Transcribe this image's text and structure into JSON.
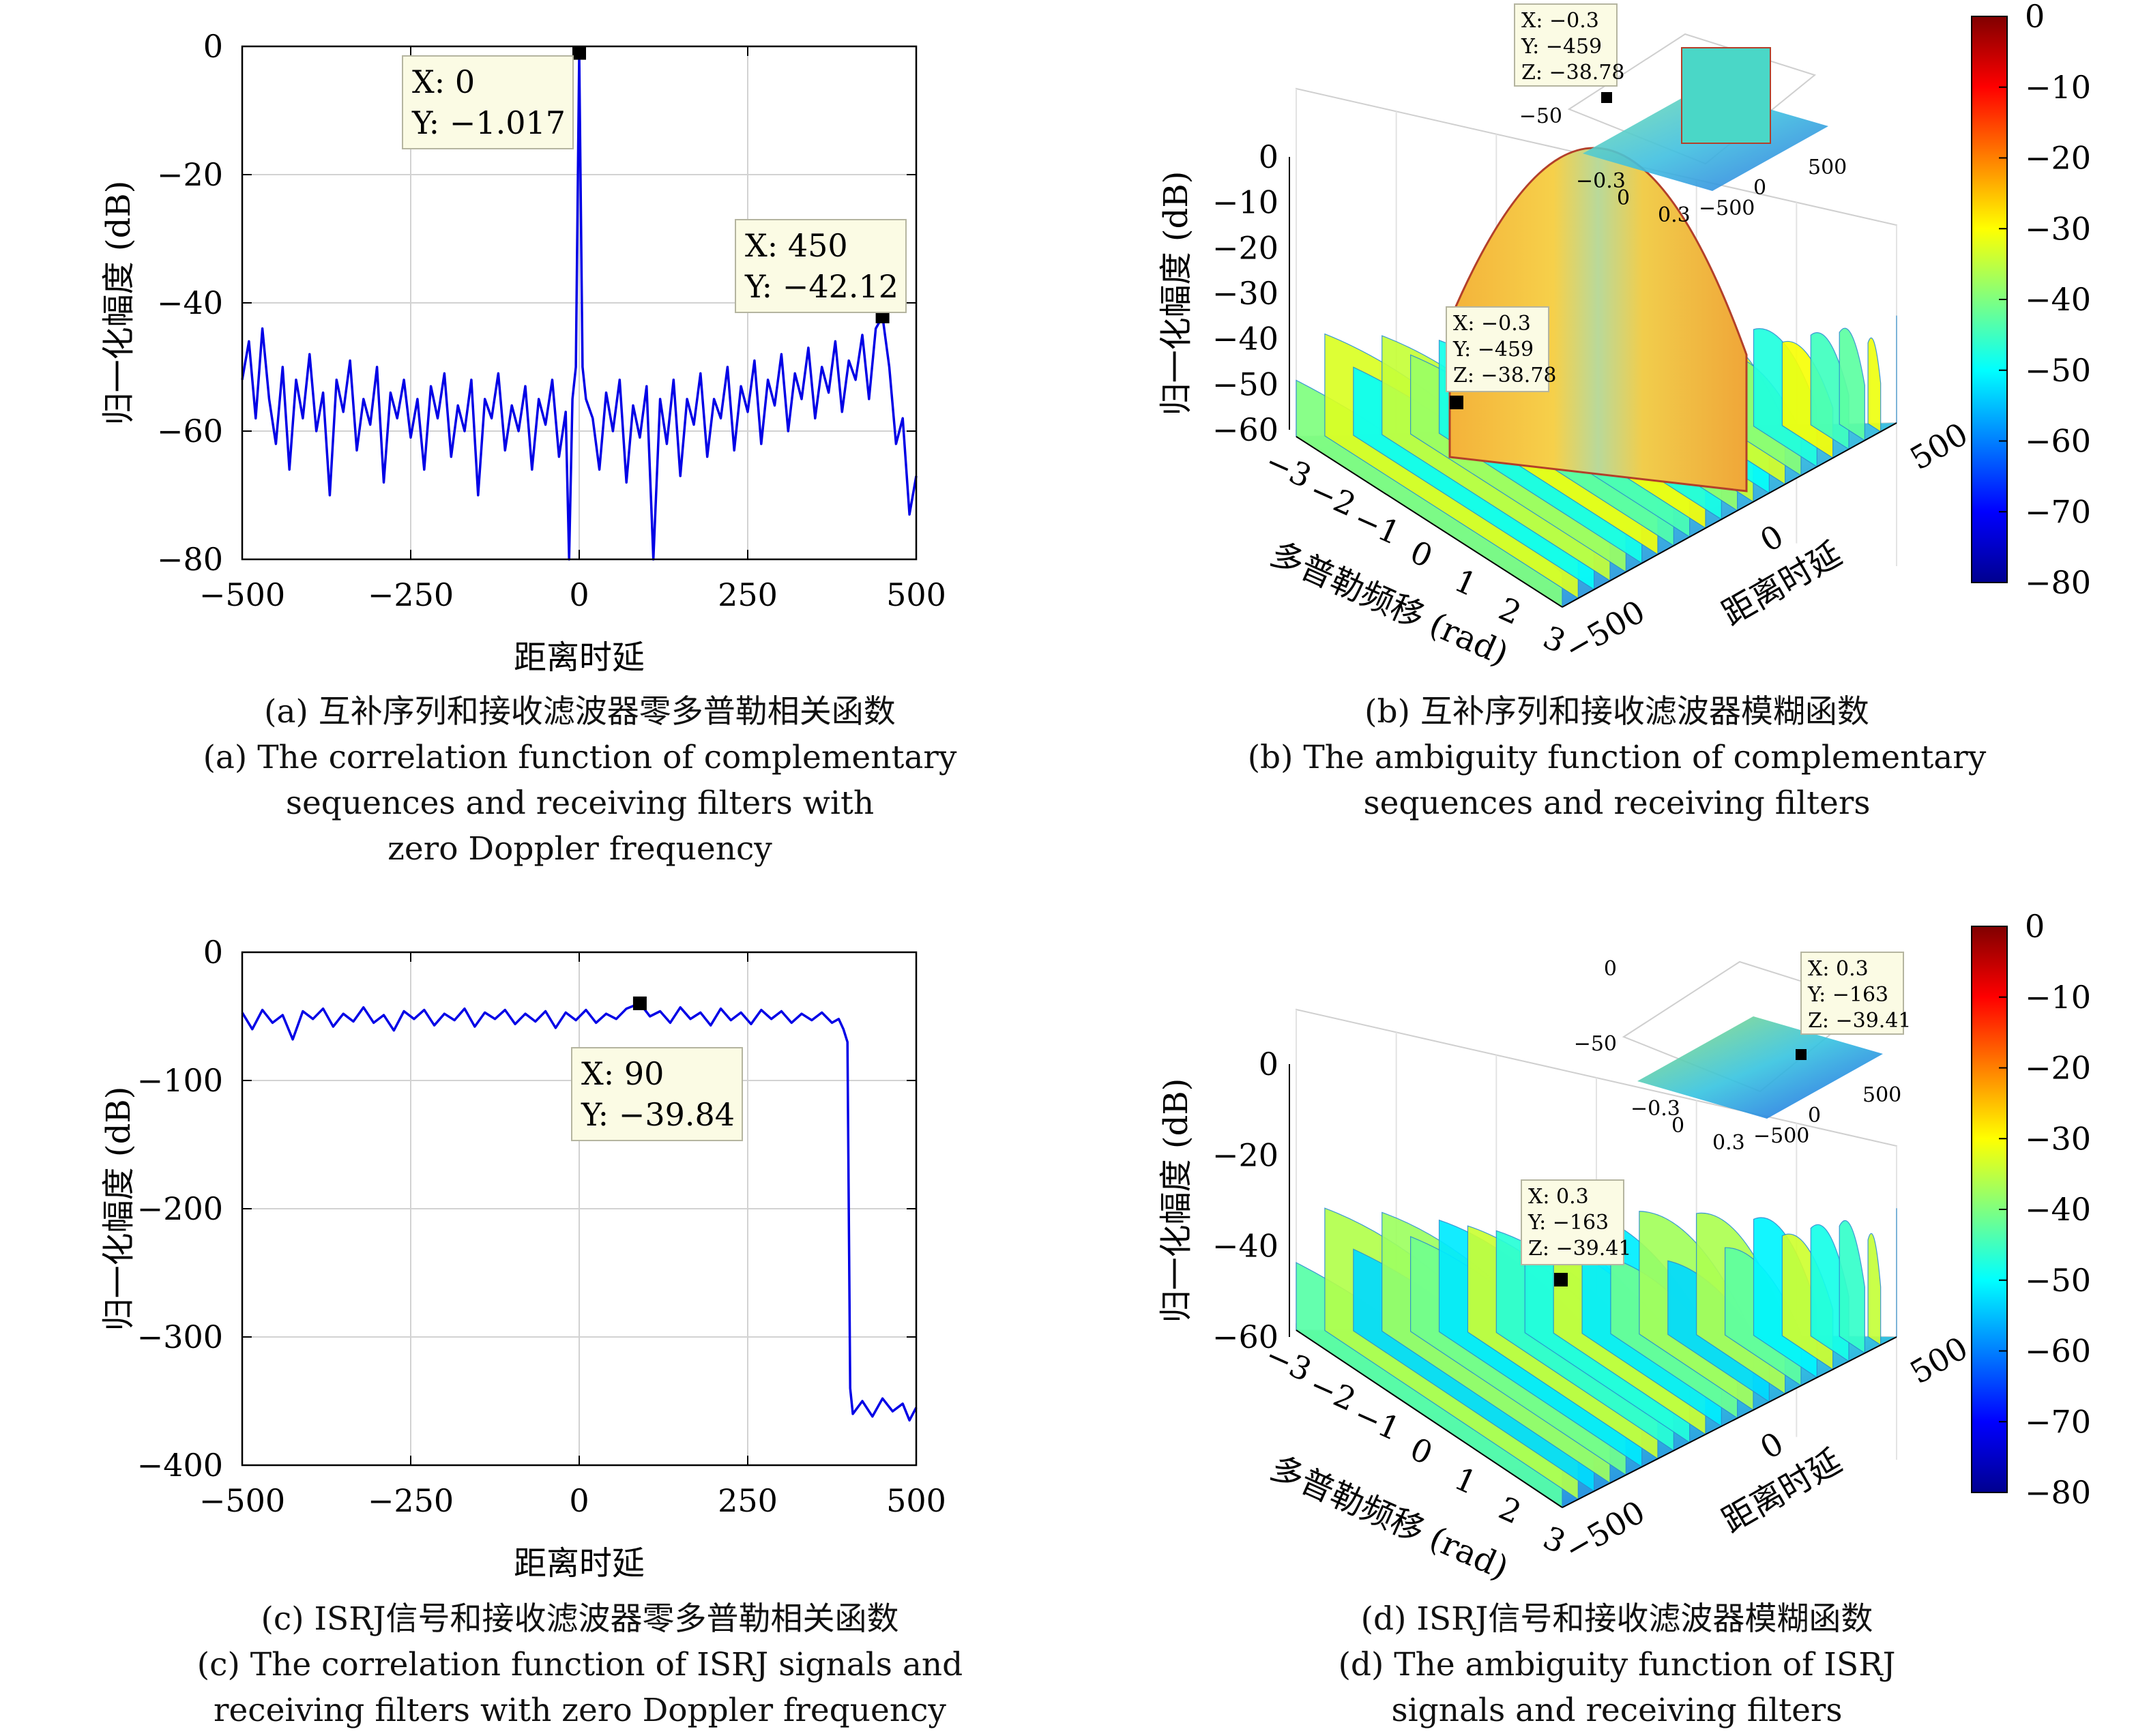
{
  "chart_data": [
    {
      "id": "a",
      "type": "line",
      "ylabel": "归一化幅度 (dB)",
      "xlabel": "距离时延",
      "xlim": [
        -500,
        500
      ],
      "ylim": [
        -80,
        0
      ],
      "xticks": [
        "−500",
        "−250",
        "0",
        "250",
        "500"
      ],
      "yticks": [
        "0",
        "−20",
        "−40",
        "−60",
        "−80"
      ],
      "grid": true,
      "line_color": "#0000e6",
      "series": [
        {
          "points": [
            [
              -500,
              -52
            ],
            [
              -490,
              -46
            ],
            [
              -480,
              -58
            ],
            [
              -470,
              -44
            ],
            [
              -460,
              -55
            ],
            [
              -450,
              -62
            ],
            [
              -440,
              -50
            ],
            [
              -430,
              -66
            ],
            [
              -420,
              -52
            ],
            [
              -410,
              -58
            ],
            [
              -400,
              -48
            ],
            [
              -390,
              -60
            ],
            [
              -380,
              -54
            ],
            [
              -370,
              -70
            ],
            [
              -360,
              -52
            ],
            [
              -350,
              -57
            ],
            [
              -340,
              -49
            ],
            [
              -330,
              -63
            ],
            [
              -320,
              -55
            ],
            [
              -310,
              -59
            ],
            [
              -300,
              -50
            ],
            [
              -290,
              -68
            ],
            [
              -280,
              -54
            ],
            [
              -270,
              -58
            ],
            [
              -260,
              -52
            ],
            [
              -250,
              -61
            ],
            [
              -240,
              -55
            ],
            [
              -230,
              -66
            ],
            [
              -220,
              -53
            ],
            [
              -210,
              -58
            ],
            [
              -200,
              -51
            ],
            [
              -190,
              -64
            ],
            [
              -180,
              -56
            ],
            [
              -170,
              -60
            ],
            [
              -160,
              -52
            ],
            [
              -150,
              -70
            ],
            [
              -140,
              -55
            ],
            [
              -130,
              -58
            ],
            [
              -120,
              -51
            ],
            [
              -110,
              -63
            ],
            [
              -100,
              -56
            ],
            [
              -90,
              -60
            ],
            [
              -80,
              -53
            ],
            [
              -70,
              -66
            ],
            [
              -60,
              -55
            ],
            [
              -50,
              -59
            ],
            [
              -40,
              -52
            ],
            [
              -30,
              -64
            ],
            [
              -20,
              -57
            ],
            [
              -15,
              -80
            ],
            [
              -10,
              -55
            ],
            [
              -5,
              -50
            ],
            [
              0,
              -1.017
            ],
            [
              5,
              -50
            ],
            [
              10,
              -55
            ],
            [
              20,
              -58
            ],
            [
              30,
              -66
            ],
            [
              40,
              -54
            ],
            [
              50,
              -60
            ],
            [
              60,
              -52
            ],
            [
              70,
              -68
            ],
            [
              80,
              -56
            ],
            [
              90,
              -61
            ],
            [
              100,
              -53
            ],
            [
              110,
              -80
            ],
            [
              120,
              -55
            ],
            [
              130,
              -62
            ],
            [
              140,
              -52
            ],
            [
              150,
              -67
            ],
            [
              160,
              -55
            ],
            [
              170,
              -59
            ],
            [
              180,
              -51
            ],
            [
              190,
              -64
            ],
            [
              200,
              -55
            ],
            [
              210,
              -58
            ],
            [
              220,
              -50
            ],
            [
              230,
              -63
            ],
            [
              240,
              -53
            ],
            [
              250,
              -57
            ],
            [
              260,
              -49
            ],
            [
              270,
              -62
            ],
            [
              280,
              -52
            ],
            [
              290,
              -56
            ],
            [
              300,
              -48
            ],
            [
              310,
              -60
            ],
            [
              320,
              -51
            ],
            [
              330,
              -55
            ],
            [
              340,
              -47
            ],
            [
              350,
              -58
            ],
            [
              360,
              -50
            ],
            [
              370,
              -54
            ],
            [
              380,
              -46
            ],
            [
              390,
              -57
            ],
            [
              400,
              -49
            ],
            [
              410,
              -52
            ],
            [
              420,
              -45
            ],
            [
              430,
              -55
            ],
            [
              440,
              -44
            ],
            [
              450,
              -42.12
            ],
            [
              460,
              -50
            ],
            [
              470,
              -62
            ],
            [
              480,
              -58
            ],
            [
              490,
              -73
            ],
            [
              500,
              -67
            ]
          ]
        }
      ],
      "datatips": [
        {
          "x": 0,
          "y": -1.017,
          "lines": [
            "X: 0",
            "Y: −1.017"
          ]
        },
        {
          "x": 450,
          "y": -42.12,
          "lines": [
            "X: 450",
            "Y: −42.12"
          ]
        }
      ],
      "caption": [
        "(a) 互补序列和接收滤波器零多普勒相关函数",
        "(a) The correlation function of complementary",
        "sequences and receiving filters with",
        "zero Doppler frequency"
      ]
    },
    {
      "id": "b",
      "type": "surface3d",
      "zlabel": "归一化幅度 (dB)",
      "xlabel": "多普勒频移 (rad)",
      "ylabel": "距离时延",
      "xticks": [
        "−3",
        "−2",
        "−1",
        "0",
        "1",
        "2",
        "3"
      ],
      "yticks": [
        "−500",
        "0",
        "500"
      ],
      "zticks": [
        "0",
        "−10",
        "−20",
        "−30",
        "−40",
        "−50",
        "−60"
      ],
      "zlim": [
        -60,
        0
      ],
      "colorbar": {
        "ticks": [
          "0",
          "−10",
          "−20",
          "−30",
          "−40",
          "−50",
          "−60",
          "−70",
          "−80"
        ],
        "range": [
          -80,
          0
        ]
      },
      "datatip": {
        "lines": [
          "X: −0.3",
          "Y: −459",
          "Z: −38.78"
        ]
      },
      "inset": {
        "zticks": [
          "0",
          "−50"
        ],
        "xticks": [
          "−0.3",
          "0",
          "0.3"
        ],
        "yticks": [
          "−500",
          "0",
          "500"
        ]
      },
      "caption": [
        "(b) 互补序列和接收滤波器模糊函数",
        "(b) The ambiguity function of complementary",
        "sequences and receiving filters"
      ]
    },
    {
      "id": "c",
      "type": "line",
      "ylabel": "归一化幅度 (dB)",
      "xlabel": "距离时延",
      "xlim": [
        -500,
        500
      ],
      "ylim": [
        -400,
        0
      ],
      "xticks": [
        "−500",
        "−250",
        "0",
        "250",
        "500"
      ],
      "yticks": [
        "0",
        "−100",
        "−200",
        "−300",
        "−400"
      ],
      "grid": true,
      "line_color": "#0000e6",
      "series": [
        {
          "points": [
            [
              -500,
              -47
            ],
            [
              -485,
              -60
            ],
            [
              -470,
              -45
            ],
            [
              -455,
              -55
            ],
            [
              -440,
              -49
            ],
            [
              -425,
              -68
            ],
            [
              -410,
              -46
            ],
            [
              -395,
              -52
            ],
            [
              -380,
              -44
            ],
            [
              -365,
              -58
            ],
            [
              -350,
              -48
            ],
            [
              -335,
              -54
            ],
            [
              -320,
              -43
            ],
            [
              -305,
              -55
            ],
            [
              -290,
              -49
            ],
            [
              -275,
              -61
            ],
            [
              -260,
              -46
            ],
            [
              -245,
              -52
            ],
            [
              -230,
              -45
            ],
            [
              -215,
              -57
            ],
            [
              -200,
              -48
            ],
            [
              -185,
              -53
            ],
            [
              -170,
              -44
            ],
            [
              -155,
              -58
            ],
            [
              -140,
              -47
            ],
            [
              -125,
              -52
            ],
            [
              -110,
              -45
            ],
            [
              -95,
              -56
            ],
            [
              -80,
              -48
            ],
            [
              -65,
              -54
            ],
            [
              -50,
              -46
            ],
            [
              -35,
              -59
            ],
            [
              -20,
              -47
            ],
            [
              -5,
              -53
            ],
            [
              10,
              -45
            ],
            [
              25,
              -55
            ],
            [
              40,
              -48
            ],
            [
              55,
              -52
            ],
            [
              70,
              -44
            ],
            [
              90,
              -39.84
            ],
            [
              105,
              -50
            ],
            [
              120,
              -46
            ],
            [
              135,
              -55
            ],
            [
              150,
              -43
            ],
            [
              165,
              -52
            ],
            [
              180,
              -47
            ],
            [
              195,
              -57
            ],
            [
              210,
              -44
            ],
            [
              225,
              -53
            ],
            [
              240,
              -47
            ],
            [
              255,
              -56
            ],
            [
              270,
              -45
            ],
            [
              285,
              -52
            ],
            [
              300,
              -46
            ],
            [
              315,
              -55
            ],
            [
              330,
              -48
            ],
            [
              345,
              -53
            ],
            [
              360,
              -47
            ],
            [
              375,
              -55
            ],
            [
              385,
              -52
            ],
            [
              392,
              -60
            ],
            [
              398,
              -70
            ],
            [
              402,
              -340
            ],
            [
              406,
              -360
            ],
            [
              420,
              -350
            ],
            [
              435,
              -362
            ],
            [
              450,
              -348
            ],
            [
              465,
              -358
            ],
            [
              480,
              -352
            ],
            [
              490,
              -365
            ],
            [
              500,
              -355
            ]
          ]
        }
      ],
      "datatips": [
        {
          "x": 90,
          "y": -39.84,
          "lines": [
            "X: 90",
            "Y: −39.84"
          ]
        }
      ],
      "caption": [
        "(c) ISRJ信号和接收滤波器零多普勒相关函数",
        "(c) The correlation function of ISRJ signals and",
        "receiving filters with zero Doppler frequency"
      ]
    },
    {
      "id": "d",
      "type": "surface3d",
      "zlabel": "归一化幅度 (dB)",
      "xlabel": "多普勒频移 (rad)",
      "ylabel": "距离时延",
      "xticks": [
        "−3",
        "−2",
        "−1",
        "0",
        "1",
        "2",
        "3"
      ],
      "yticks": [
        "−500",
        "0",
        "500"
      ],
      "zticks": [
        "0",
        "−20",
        "−40",
        "−60"
      ],
      "zlim": [
        -60,
        0
      ],
      "colorbar": {
        "ticks": [
          "0",
          "−10",
          "−20",
          "−30",
          "−40",
          "−50",
          "−60",
          "−70",
          "−80"
        ],
        "range": [
          -80,
          0
        ]
      },
      "datatip": {
        "lines": [
          "X: 0.3",
          "Y: −163",
          "Z: −39.41"
        ]
      },
      "inset": {
        "zticks": [
          "0",
          "−50"
        ],
        "xticks": [
          "−0.3",
          "0",
          "0.3"
        ],
        "yticks": [
          "−500",
          "0",
          "500"
        ]
      },
      "caption": [
        "(d) ISRJ信号和接收滤波器模糊函数",
        "(d) The ambiguity function of ISRJ",
        "signals and receiving filters"
      ]
    }
  ]
}
